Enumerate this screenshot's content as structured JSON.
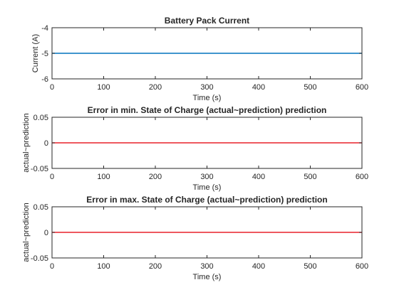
{
  "chart_data": [
    {
      "type": "line",
      "title": "Battery Pack Current",
      "xlabel": "Time (s)",
      "ylabel": "Current (A)",
      "xlim": [
        0,
        600
      ],
      "ylim": [
        -6,
        -4
      ],
      "xticks": [
        "0",
        "100",
        "200",
        "300",
        "400",
        "500",
        "600"
      ],
      "yticks": [
        "-6",
        "-5",
        "-4"
      ],
      "grid": false,
      "series": [
        {
          "color": "#0072bd",
          "x": [
            0,
            600
          ],
          "y": [
            -5,
            -5
          ]
        }
      ]
    },
    {
      "type": "line",
      "title": "Error in min. State of Charge (actual~prediction) prediction",
      "xlabel": "Time (s)",
      "ylabel": "actual~prediction",
      "xlim": [
        0,
        600
      ],
      "ylim": [
        -0.05,
        0.05
      ],
      "xticks": [
        "0",
        "100",
        "200",
        "300",
        "400",
        "500",
        "600"
      ],
      "yticks": [
        "-0.05",
        "0",
        "0.05"
      ],
      "grid": false,
      "series": [
        {
          "color": "#e8202a",
          "x": [
            0,
            600
          ],
          "y": [
            0,
            0
          ]
        }
      ]
    },
    {
      "type": "line",
      "title": "Error in max. State of Charge (actual~prediction) prediction",
      "xlabel": "Time (s)",
      "ylabel": "actual~prediction",
      "xlim": [
        0,
        600
      ],
      "ylim": [
        -0.05,
        0.05
      ],
      "xticks": [
        "0",
        "100",
        "200",
        "300",
        "400",
        "500",
        "600"
      ],
      "yticks": [
        "-0.05",
        "0",
        "0.05"
      ],
      "grid": false,
      "series": [
        {
          "color": "#e8202a",
          "x": [
            0,
            600
          ],
          "y": [
            0,
            0
          ]
        }
      ]
    }
  ]
}
